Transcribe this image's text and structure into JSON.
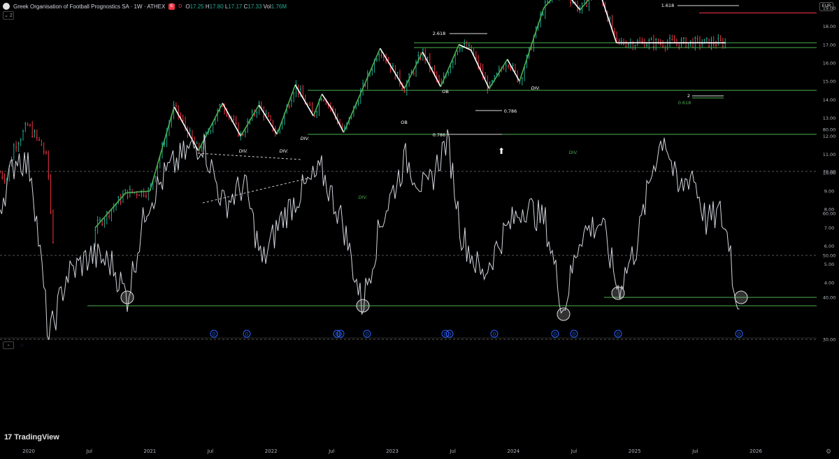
{
  "header": {
    "symbol_title": "Greek Organisation of Football Prognostics SA · 1W · ATHEX",
    "badge": "E",
    "badge2": "D",
    "ohlc": {
      "o_label": "O",
      "o": "17.25",
      "h_label": "H",
      "h": "17.80",
      "l_label": "L",
      "l": "17.17",
      "c_label": "C",
      "c": "17.33",
      "vol_label": "Vol",
      "vol": "1.76M"
    },
    "indicator_count": "2",
    "currency": "EUR"
  },
  "colors": {
    "up": "#22ab94",
    "down": "#f23645",
    "green_line": "#4caf50",
    "bg": "#000000",
    "label_green": "#4caf50",
    "label_red": "#f23645",
    "rsi": "#d1d4dc"
  },
  "branding": {
    "logo": "TradingView"
  },
  "chart_data": [
    {
      "type": "line",
      "name": "price-panel",
      "ylim": [
        4.0,
        21.5
      ],
      "y_ticks": [
        "4.00",
        "5.00",
        "6.00",
        "7.00",
        "8.00",
        "9.00",
        "10.00",
        "11.00",
        "12.00",
        "13.00",
        "14.00",
        "15.00",
        "16.00",
        "17.00",
        "18.00",
        "19.00",
        "20.00",
        "21.00"
      ],
      "x_ticks": [
        "2020",
        "Jul",
        "2021",
        "Jul",
        "2022",
        "Jul",
        "2023",
        "Jul",
        "2024",
        "Jul",
        "2025",
        "Jul",
        "2026"
      ],
      "series": [
        {
          "values_x": [
            2020.55,
            2020.8,
            2021.0,
            2021.2,
            2021.4,
            2021.6,
            2021.75,
            2021.9,
            2022.05,
            2022.2,
            2022.35,
            2022.42,
            2022.5,
            2022.6,
            2022.75,
            2022.9,
            2023.1,
            2023.25,
            2023.4,
            2023.55,
            2023.65,
            2023.8,
            2023.95,
            2024.05,
            2024.25,
            2024.4,
            2024.55,
            2024.7,
            2024.85,
            2025.05,
            2025.2,
            2025.35,
            2025.5,
            2025.65,
            2025.75
          ],
          "values": [
            7.0,
            8.9,
            9.0,
            13.6,
            11.2,
            13.8,
            12.0,
            13.7,
            12.1,
            14.8,
            13.1,
            14.3,
            13.5,
            12.2,
            14.5,
            16.8,
            14.6,
            16.6,
            14.7,
            17.0,
            16.7,
            14.6,
            16.2,
            15.0,
            19.0,
            20.1,
            18.9,
            20.1,
            17.1,
            17.1,
            17.1,
            17.1,
            17.1,
            17.1,
            17.1
          ]
        }
      ],
      "horizontal_levels": [
        {
          "value": 20.24,
          "label": "20.24",
          "color": "red"
        },
        {
          "value": 18.73,
          "label": "18.73",
          "color": "red"
        },
        {
          "value": 17.1,
          "label": "17.10",
          "color": "green"
        },
        {
          "value": 16.84,
          "label": "16.84",
          "color": "green"
        },
        {
          "value": 14.5,
          "label": "14.50",
          "color": "green"
        },
        {
          "value": 12.1,
          "label": "12.10",
          "color": "green"
        }
      ],
      "annotations": [
        "DIV.",
        "DIV.",
        "DIV.",
        "DIV.",
        "DIV.",
        "DIV.",
        "OB",
        "OB",
        "0.786",
        "0.786",
        "2.618",
        "1.618",
        "2",
        "0.618"
      ]
    },
    {
      "type": "line",
      "name": "rsi-panel",
      "ylim": [
        25,
        82
      ],
      "y_ticks": [
        "30.00",
        "40.00",
        "50.00",
        "60.00",
        "70.00",
        "80.00"
      ],
      "levels": [
        70,
        50,
        30
      ],
      "support_level": 38,
      "current_value": "40.00"
    }
  ],
  "labels": {
    "div": "DIV.",
    "ob": "OB",
    "fib_0786": "0.786",
    "fib_2618": "2.618",
    "fib_1618": "1.618",
    "fib_2": "2",
    "fib_0618": "0.618",
    "d_marker": "D"
  }
}
